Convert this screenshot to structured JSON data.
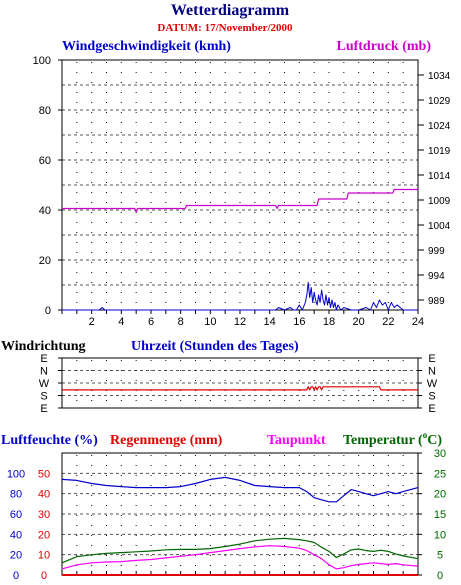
{
  "title": "Wetterdiagramm",
  "date_label": "DATUM: 17/November/2000",
  "colors": {
    "title": "#000080",
    "date": "#e00000",
    "wind": "#0000cc",
    "pressure": "#cc00cc",
    "direction": "#e00000",
    "humidity": "#0000cc",
    "rain": "#e00000",
    "dewpoint": "#ff00ff",
    "temperature": "#006600",
    "grid": "#000000",
    "text": "#000000"
  },
  "chart_data": [
    {
      "type": "line",
      "id": "wind-pressure",
      "series": [
        {
          "name": "Windgeschwindigkeit (kmh)",
          "axis": "left",
          "x": [
            0,
            2.5,
            2.7,
            2.9,
            5,
            6,
            14.4,
            14.6,
            15,
            15.4,
            15.6,
            15.8,
            16.0,
            16.2,
            16.4,
            16.5,
            16.6,
            16.7,
            16.8,
            16.9,
            17.0,
            17.1,
            17.2,
            17.3,
            17.4,
            17.5,
            17.6,
            17.7,
            17.8,
            17.9,
            18.0,
            18.1,
            18.2,
            18.3,
            18.4,
            18.5,
            18.6,
            18.8,
            19.0,
            19.5,
            20.0,
            20.5,
            20.8,
            21.0,
            21.2,
            21.4,
            21.6,
            21.8,
            22.0,
            22.2,
            22.4,
            22.6,
            23,
            24
          ],
          "y": [
            0,
            0,
            1,
            0,
            0,
            0,
            0,
            1,
            0,
            1,
            0,
            0,
            2,
            0,
            3,
            6,
            11,
            5,
            9,
            3,
            7,
            4,
            2,
            6,
            3,
            8,
            4,
            2,
            6,
            2,
            5,
            1,
            4,
            1,
            3,
            0,
            2,
            0,
            1,
            0,
            0,
            1,
            0,
            3,
            1,
            4,
            2,
            3,
            0,
            3,
            1,
            2,
            0,
            0
          ]
        },
        {
          "name": "Luftdruck (mb)",
          "axis": "right",
          "x": [
            0,
            4.9,
            5.0,
            5.1,
            8.3,
            8.4,
            14.4,
            14.5,
            14.6,
            17.2,
            17.3,
            19.2,
            19.3,
            22.3,
            22.4,
            24
          ],
          "y": [
            1007.3,
            1007.3,
            1006.6,
            1007.3,
            1007.3,
            1007.9,
            1007.9,
            1007.3,
            1007.9,
            1007.9,
            1009.2,
            1009.2,
            1010.4,
            1010.4,
            1011.1,
            1011.1
          ]
        }
      ],
      "ylabel_left": "Windgeschwindigkeit (kmh)",
      "ylabel_right": "Luftdruck (mb)",
      "xlabel": "Uhrzeit (Stunden des Tages)",
      "xlim": [
        0,
        24
      ],
      "ylim_left": [
        0,
        100
      ],
      "ylim_right": [
        987,
        1037
      ],
      "x_ticks": [
        "2",
        "4",
        "6",
        "8",
        "10",
        "12",
        "14",
        "16",
        "18",
        "20",
        "22",
        "24"
      ],
      "y_ticks_left": [
        "0",
        "20",
        "40",
        "60",
        "80",
        "100"
      ],
      "y_ticks_right": [
        "989",
        "994",
        "999",
        "1004",
        "1009",
        "1014",
        "1019",
        "1024",
        "1029",
        "1034"
      ],
      "grid": true
    },
    {
      "type": "line",
      "id": "wind-direction",
      "label": "Windrichtung",
      "categories": [
        "E",
        "N",
        "W",
        "S",
        "E"
      ],
      "series": [
        {
          "name": "Windrichtung",
          "x": [
            0,
            16.5,
            16.6,
            16.7,
            16.8,
            16.9,
            17.0,
            17.1,
            17.2,
            17.3,
            17.4,
            17.5,
            17.6,
            17.7,
            17.8,
            17.9,
            18.0,
            18.1,
            18.2,
            21.4,
            21.5,
            22.6,
            22.7,
            24
          ],
          "y": [
            2.55,
            2.55,
            2.3,
            2.55,
            2.3,
            2.3,
            2.55,
            2.3,
            2.55,
            2.3,
            2.3,
            2.55,
            2.3,
            2.3,
            2.3,
            2.3,
            2.3,
            2.3,
            2.3,
            2.3,
            2.55,
            2.55,
            2.55,
            2.55
          ]
        }
      ],
      "xlim": [
        0,
        24
      ]
    },
    {
      "type": "line",
      "id": "humidity-rain-temp",
      "series": [
        {
          "name": "Luftfeuchte (%)",
          "axis": "humidity",
          "x": [
            0,
            1,
            2,
            3,
            4,
            5,
            6,
            7,
            8,
            9,
            10,
            11,
            12,
            13,
            14,
            15,
            16,
            16.5,
            17,
            17.5,
            18,
            18.5,
            19,
            19.5,
            20,
            20.5,
            21,
            21.5,
            22,
            22.5,
            23,
            24
          ],
          "y": [
            94,
            93,
            90,
            88,
            87,
            86,
            86,
            86,
            87,
            90,
            94,
            96,
            93,
            88,
            87,
            86,
            86,
            82,
            76,
            74,
            72,
            72,
            78,
            84,
            82,
            80,
            78,
            80,
            82,
            80,
            82,
            86
          ]
        },
        {
          "name": "Regenmenge (mm)",
          "axis": "rain",
          "x": [
            0,
            24
          ],
          "y": [
            0,
            0
          ]
        },
        {
          "name": "Taupunkt",
          "axis": "temperature",
          "x": [
            0,
            1,
            2,
            3,
            4,
            5,
            6,
            7,
            8,
            9,
            10,
            11,
            12,
            13,
            14,
            15,
            16,
            16.5,
            17,
            17.5,
            18,
            18.5,
            19,
            19.5,
            20,
            20.5,
            21,
            21.5,
            22,
            22.5,
            23,
            24
          ],
          "y": [
            1.5,
            2.5,
            3.0,
            3.2,
            3.3,
            3.6,
            3.8,
            4.2,
            4.6,
            5.0,
            5.5,
            6.0,
            6.5,
            6.9,
            7.2,
            7.0,
            6.6,
            6.0,
            5.0,
            4.0,
            2.5,
            1.5,
            1.8,
            2.3,
            2.6,
            2.8,
            3.0,
            2.8,
            2.6,
            2.8,
            2.5,
            2.2
          ]
        },
        {
          "name": "Temperatur (°C)",
          "axis": "temperature",
          "x": [
            0,
            1,
            2,
            3,
            4,
            5,
            6,
            7,
            8,
            9,
            10,
            11,
            12,
            13,
            14,
            15,
            16,
            16.5,
            17,
            17.5,
            18,
            18.5,
            19,
            19.5,
            20,
            20.5,
            21,
            21.5,
            22,
            22.5,
            23,
            24
          ],
          "y": [
            3.0,
            4.5,
            5.0,
            5.3,
            5.5,
            5.7,
            5.9,
            6.2,
            6.3,
            6.3,
            6.5,
            7.0,
            7.6,
            8.4,
            8.8,
            9.0,
            8.7,
            8.4,
            8.0,
            6.8,
            5.8,
            4.3,
            5.2,
            6.2,
            6.4,
            6.0,
            5.8,
            6.1,
            5.8,
            5.2,
            4.7,
            4.0
          ]
        }
      ],
      "xlim": [
        0,
        24
      ],
      "ylim_humidity": [
        0,
        120
      ],
      "ylim_rain": [
        0,
        60
      ],
      "ylim_temperature": [
        0,
        30
      ],
      "y_ticks_humidity": [
        "0",
        "20",
        "40",
        "60",
        "80",
        "100"
      ],
      "y_ticks_rain": [
        "0",
        "10",
        "20",
        "30",
        "40",
        "50"
      ],
      "y_ticks_temperature": [
        "0",
        "5",
        "10",
        "15",
        "20",
        "25",
        "30"
      ],
      "labels": {
        "humidity": "Luftfeuchte (%)",
        "rain": "Regenmenge (mm)",
        "dewpoint": "Taupunkt",
        "temperature": "Temperatur (",
        "temperature_unit": "o",
        "temperature_suffix": "C)"
      }
    }
  ]
}
